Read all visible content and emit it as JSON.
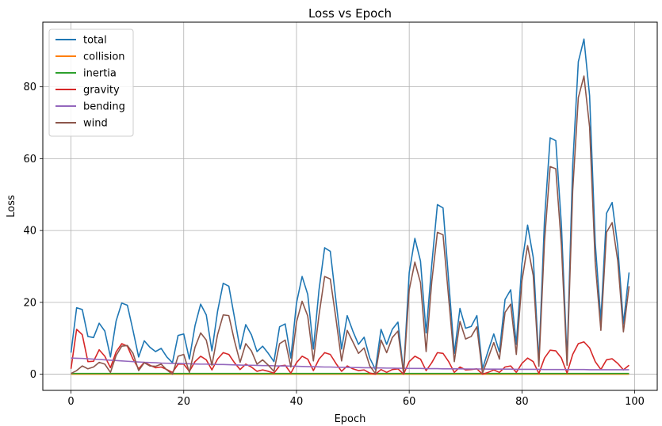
{
  "chart_data": {
    "type": "line",
    "title": "Loss vs Epoch",
    "xlabel": "Epoch",
    "ylabel": "Loss",
    "xlim": [
      -5,
      104
    ],
    "ylim": [
      -4.5,
      98
    ],
    "xticks": [
      0,
      20,
      40,
      60,
      80,
      100
    ],
    "yticks": [
      0,
      20,
      40,
      60,
      80
    ],
    "grid": true,
    "legend_position": "top-left",
    "x": [
      0,
      1,
      2,
      3,
      4,
      5,
      6,
      7,
      8,
      9,
      10,
      11,
      12,
      13,
      14,
      15,
      16,
      17,
      18,
      19,
      20,
      21,
      22,
      23,
      24,
      25,
      26,
      27,
      28,
      29,
      30,
      31,
      32,
      33,
      34,
      35,
      36,
      37,
      38,
      39,
      40,
      41,
      42,
      43,
      44,
      45,
      46,
      47,
      48,
      49,
      50,
      51,
      52,
      53,
      54,
      55,
      56,
      57,
      58,
      59,
      60,
      61,
      62,
      63,
      64,
      65,
      66,
      67,
      68,
      69,
      70,
      71,
      72,
      73,
      74,
      75,
      76,
      77,
      78,
      79,
      80,
      81,
      82,
      83,
      84,
      85,
      86,
      87,
      88,
      89,
      90,
      91,
      92,
      93,
      94,
      95,
      96,
      97,
      98,
      99
    ],
    "series": [
      {
        "name": "total",
        "color": "#1f77b4",
        "values": [
          6,
          18.5,
          18,
          10.5,
          10.2,
          14.2,
          12,
          4.8,
          14.8,
          19.8,
          19.2,
          12.2,
          4.8,
          9.3,
          7.5,
          6.3,
          7.2,
          4.8,
          3.2,
          10.8,
          11.2,
          4.2,
          13.5,
          19.5,
          16.5,
          6.5,
          17.5,
          25.3,
          24.5,
          15.8,
          7,
          13.8,
          11,
          6.3,
          7.8,
          5.8,
          3.5,
          13.2,
          14,
          4.5,
          19.8,
          27.2,
          22.2,
          7,
          23.5,
          35.2,
          34.2,
          20.5,
          7,
          16.3,
          12,
          8.3,
          10.3,
          4.5,
          1.3,
          12.5,
          8.3,
          12.5,
          14.5,
          0.5,
          28.3,
          37.8,
          31.5,
          11.5,
          30.5,
          47.2,
          46.3,
          26,
          5.8,
          18.3,
          12.8,
          13.3,
          16.3,
          1.5,
          6.5,
          11.2,
          6.2,
          20.8,
          23.5,
          8.3,
          30.8,
          41.5,
          32.5,
          3.5,
          43,
          65.8,
          65,
          41.5,
          4,
          58,
          87,
          93.3,
          77.5,
          36.5,
          15,
          44.8,
          47.8,
          35.5,
          14,
          28.3
        ]
      },
      {
        "name": "collision",
        "color": "#ff7f0e",
        "values": [
          0,
          0,
          0,
          0,
          0,
          0,
          0,
          0,
          0,
          0,
          0,
          0,
          0,
          0,
          0,
          0,
          0,
          0,
          0,
          0,
          0,
          0,
          0,
          0,
          0,
          0,
          0,
          0,
          0,
          0,
          0,
          0,
          0,
          0,
          0,
          0,
          0,
          0,
          0,
          0,
          0,
          0,
          0,
          0,
          0,
          0,
          0,
          0,
          0,
          0,
          0,
          0,
          0,
          0,
          0,
          0,
          0,
          0,
          0,
          0,
          0,
          0,
          0,
          0,
          0,
          0,
          0,
          0,
          0,
          0,
          0,
          0,
          0,
          0,
          0,
          0,
          0,
          0,
          0,
          0,
          0,
          0,
          0,
          0,
          0,
          0,
          0,
          0,
          0,
          0,
          0,
          0,
          0,
          0,
          0,
          0,
          0,
          0,
          0,
          0
        ]
      },
      {
        "name": "inertia",
        "color": "#2ca02c",
        "values": [
          0.2,
          0.2,
          0.2,
          0.2,
          0.2,
          0.2,
          0.2,
          0.2,
          0.2,
          0.2,
          0.2,
          0.2,
          0.2,
          0.2,
          0.2,
          0.2,
          0.2,
          0.2,
          0.2,
          0.2,
          0.2,
          0.2,
          0.2,
          0.2,
          0.2,
          0.2,
          0.2,
          0.2,
          0.2,
          0.2,
          0.2,
          0.2,
          0.2,
          0.2,
          0.2,
          0.2,
          0.2,
          0.2,
          0.2,
          0.2,
          0.2,
          0.2,
          0.2,
          0.2,
          0.2,
          0.2,
          0.2,
          0.2,
          0.2,
          0.2,
          0.2,
          0.2,
          0.2,
          0.2,
          0.2,
          0.2,
          0.2,
          0.2,
          0.2,
          0.2,
          0.2,
          0.2,
          0.2,
          0.2,
          0.2,
          0.2,
          0.2,
          0.2,
          0.2,
          0.2,
          0.2,
          0.2,
          0.2,
          0.2,
          0.2,
          0.2,
          0.2,
          0.2,
          0.2,
          0.2,
          0.2,
          0.2,
          0.2,
          0.2,
          0.2,
          0.2,
          0.2,
          0.2,
          0.2,
          0.2,
          0.2,
          0.2,
          0.2,
          0.2,
          0.2,
          0.2,
          0.2,
          0.2,
          0.2,
          0.2
        ]
      },
      {
        "name": "gravity",
        "color": "#d62728",
        "values": [
          1.5,
          12.5,
          11,
          3.5,
          3.6,
          6.8,
          5,
          1.8,
          6.2,
          8.5,
          7.8,
          4.2,
          1.5,
          3.3,
          2.5,
          1.8,
          2,
          1.3,
          0.5,
          2.8,
          2.8,
          0.8,
          3.5,
          5,
          4,
          1.2,
          4.2,
          6,
          5.5,
          3.2,
          1.3,
          2.8,
          2,
          0.8,
          1.2,
          0.8,
          0.3,
          2.3,
          2.5,
          0.3,
          3.2,
          5,
          4.2,
          1,
          4.2,
          6,
          5.5,
          3,
          0.8,
          2.3,
          1.5,
          1,
          1.2,
          0.3,
          0,
          1.3,
          0.5,
          1.3,
          1.5,
          0,
          3.5,
          5,
          4.2,
          1,
          3.2,
          6,
          5.8,
          3.5,
          0.5,
          2,
          1.2,
          1.3,
          1.5,
          0,
          0.5,
          1.2,
          0.5,
          2,
          2.3,
          0.5,
          3,
          4.5,
          3.5,
          0.2,
          4.5,
          6.7,
          6.5,
          4.5,
          0.3,
          5.5,
          8.5,
          9,
          7.3,
          3.5,
          1.3,
          4,
          4.3,
          3,
          1.2,
          2.5
        ]
      },
      {
        "name": "bending",
        "color": "#9467bd",
        "values": [
          4.5,
          4.45,
          4.4,
          4.3,
          4.2,
          4.1,
          4,
          3.9,
          3.8,
          3.7,
          3.6,
          3.5,
          3.4,
          3.3,
          3.25,
          3.2,
          3.1,
          3.05,
          3,
          3,
          2.95,
          2.9,
          2.85,
          2.8,
          2.8,
          2.75,
          2.7,
          2.7,
          2.65,
          2.6,
          2.55,
          2.5,
          2.5,
          2.45,
          2.4,
          2.4,
          2.35,
          2.3,
          2.3,
          2.25,
          2.2,
          2.15,
          2.1,
          2.1,
          2.05,
          2,
          2,
          1.95,
          1.9,
          1.9,
          1.85,
          1.85,
          1.8,
          1.8,
          1.75,
          1.75,
          1.7,
          1.7,
          1.65,
          1.65,
          1.6,
          1.6,
          1.6,
          1.55,
          1.55,
          1.55,
          1.5,
          1.5,
          1.5,
          1.5,
          1.45,
          1.45,
          1.45,
          1.45,
          1.4,
          1.4,
          1.4,
          1.4,
          1.4,
          1.35,
          1.35,
          1.35,
          1.35,
          1.35,
          1.3,
          1.3,
          1.3,
          1.3,
          1.3,
          1.3,
          1.3,
          1.3,
          1.25,
          1.25,
          1.25,
          1.25,
          1.25,
          1.25,
          1.25,
          1.25
        ]
      },
      {
        "name": "wind",
        "color": "#8c564b",
        "values": [
          0.2,
          1,
          2.3,
          1.5,
          2,
          3.3,
          2.8,
          0.5,
          5.2,
          7.8,
          8,
          5.8,
          1,
          3.2,
          2.3,
          2.2,
          2.8,
          1.2,
          0,
          5,
          5.5,
          0.5,
          7.5,
          11.5,
          9.5,
          2.5,
          11,
          16.5,
          16.3,
          9.3,
          3.3,
          8.5,
          6.5,
          2.8,
          4,
          2.5,
          0.8,
          8.5,
          9.5,
          2,
          14.5,
          20.3,
          16.2,
          3.7,
          16.5,
          27.2,
          26.5,
          15.5,
          3.7,
          12.2,
          9,
          5.8,
          7.3,
          2.3,
          0.2,
          9.5,
          6,
          10.2,
          12,
          0.2,
          23.5,
          31.2,
          25.5,
          6.3,
          25.8,
          39.5,
          38.8,
          21.2,
          3.5,
          14.7,
          9.8,
          10.5,
          13.2,
          0.3,
          4.5,
          8.8,
          4.2,
          17.2,
          19.5,
          5.5,
          26,
          35.8,
          27.5,
          2.2,
          37,
          57.8,
          57.2,
          35.8,
          2.5,
          51,
          77,
          83,
          68.8,
          31,
          12.2,
          39.5,
          42.2,
          31.5,
          11.8,
          24.5
        ]
      }
    ]
  }
}
